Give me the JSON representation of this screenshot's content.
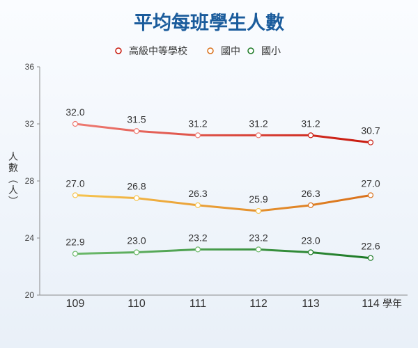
{
  "chart_data": {
    "type": "line",
    "title": "平均每班學生人數",
    "xlabel": "學年",
    "ylabel": "人數（人）",
    "categories": [
      "109",
      "110",
      "111",
      "112",
      "113",
      "114"
    ],
    "ylim": [
      20,
      36
    ],
    "yticks": [
      20,
      24,
      28,
      32,
      36
    ],
    "grid": false,
    "legend": "top",
    "series": [
      {
        "name": "高級中等學校",
        "values": [
          32.0,
          31.5,
          31.2,
          31.2,
          31.2,
          30.7
        ],
        "labels": [
          "32.0",
          "31.5",
          "31.2",
          "31.2",
          "31.2",
          "30.7"
        ],
        "color_start": "#ee7b72",
        "color_end": "#c8180c"
      },
      {
        "name": "國中",
        "values": [
          27.0,
          26.8,
          26.3,
          25.9,
          26.3,
          27.0
        ],
        "labels": [
          "27.0",
          "26.8",
          "26.3",
          "25.9",
          "26.3",
          "27.0"
        ],
        "color_start": "#f6c44e",
        "color_end": "#d9701a"
      },
      {
        "name": "國小",
        "values": [
          22.9,
          23.0,
          23.2,
          23.2,
          23.0,
          22.6
        ],
        "labels": [
          "22.9",
          "23.0",
          "23.2",
          "23.2",
          "23.0",
          "22.6"
        ],
        "color_start": "#6cb96a",
        "color_end": "#1d7a26"
      }
    ]
  }
}
